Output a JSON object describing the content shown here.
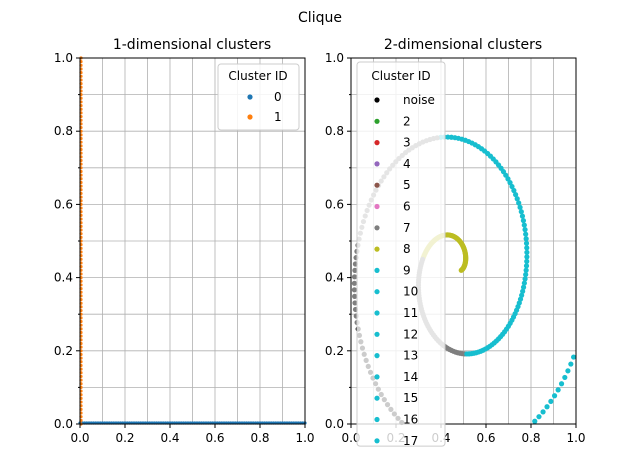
{
  "chart_data": {
    "title": "Clique",
    "plots": [
      {
        "type": "scatter",
        "title": "1-dimensional clusters",
        "xlim": [
          0,
          1
        ],
        "ylim": [
          0,
          1
        ],
        "xticks": [
          "0.0",
          "0.2",
          "0.4",
          "0.6",
          "0.8",
          "1.0"
        ],
        "yticks": [
          "0.0",
          "0.2",
          "0.4",
          "0.6",
          "0.8",
          "1.0"
        ],
        "grid": true,
        "legend": {
          "title": "Cluster ID",
          "placement": "upper right",
          "entries": [
            {
              "label": "0",
              "color": "#1f77b4"
            },
            {
              "label": "1",
              "color": "#ff7f0e"
            }
          ]
        },
        "series": [
          {
            "label": "0",
            "color": "#1f77b4",
            "pattern": "x from 0.0 to 1.0, y = 0.0 (line along bottom axis)"
          },
          {
            "label": "1",
            "color": "#ff7f0e",
            "pattern": "x = 0.0, y from 0.0 to 1.0 (line along left axis)"
          }
        ]
      },
      {
        "type": "scatter",
        "title": "2-dimensional clusters",
        "xlim": [
          0,
          1
        ],
        "ylim": [
          0,
          1
        ],
        "xticks": [
          "0.0",
          "0.2",
          "0.4",
          "0.6",
          "0.8",
          "1.0"
        ],
        "yticks": [
          "0.0",
          "0.2",
          "0.4",
          "0.6",
          "0.8",
          "1.0"
        ],
        "grid": true,
        "legend": {
          "title": "Cluster ID",
          "placement": "upper left",
          "entries": [
            {
              "label": "noise",
              "color": "#000000"
            },
            {
              "label": "2",
              "color": "#2ca02c"
            },
            {
              "label": "3",
              "color": "#d62728"
            },
            {
              "label": "4",
              "color": "#9467bd"
            },
            {
              "label": "5",
              "color": "#8c564b"
            },
            {
              "label": "6",
              "color": "#e377c2"
            },
            {
              "label": "7",
              "color": "#7f7f7f"
            },
            {
              "label": "8",
              "color": "#bcbd22"
            },
            {
              "label": "9",
              "color": "#17becf"
            },
            {
              "label": "10",
              "color": "#17becf"
            },
            {
              "label": "11",
              "color": "#17becf"
            },
            {
              "label": "12",
              "color": "#17becf"
            },
            {
              "label": "13",
              "color": "#17becf"
            },
            {
              "label": "14",
              "color": "#17becf"
            },
            {
              "label": "15",
              "color": "#17becf"
            },
            {
              "label": "16",
              "color": "#17becf"
            },
            {
              "label": "17",
              "color": "#17becf"
            }
          ]
        },
        "spiral": {
          "center": [
            0.47,
            0.42
          ],
          "points": 300,
          "theta_start": 0.0,
          "theta_end": 12.2,
          "r_start": 0.02,
          "r_end": 0.58,
          "arms": [
            {
              "from": 0.0,
              "to": 0.1,
              "color": "#bcbd22"
            },
            {
              "from": 0.1,
              "to": 0.24,
              "color": "#bcbd22"
            },
            {
              "from": 0.24,
              "to": 0.4,
              "color": "#7f7f7f"
            },
            {
              "from": 0.4,
              "to": 0.56,
              "color": "#17becf"
            },
            {
              "from": 0.56,
              "to": 0.66,
              "color": "#17becf"
            },
            {
              "from": 0.66,
              "to": 0.8,
              "color": "#7f7f7f"
            },
            {
              "from": 0.8,
              "to": 0.9,
              "color": "#000000"
            },
            {
              "from": 0.9,
              "to": 1.0,
              "color": "#17becf"
            }
          ]
        }
      }
    ]
  }
}
